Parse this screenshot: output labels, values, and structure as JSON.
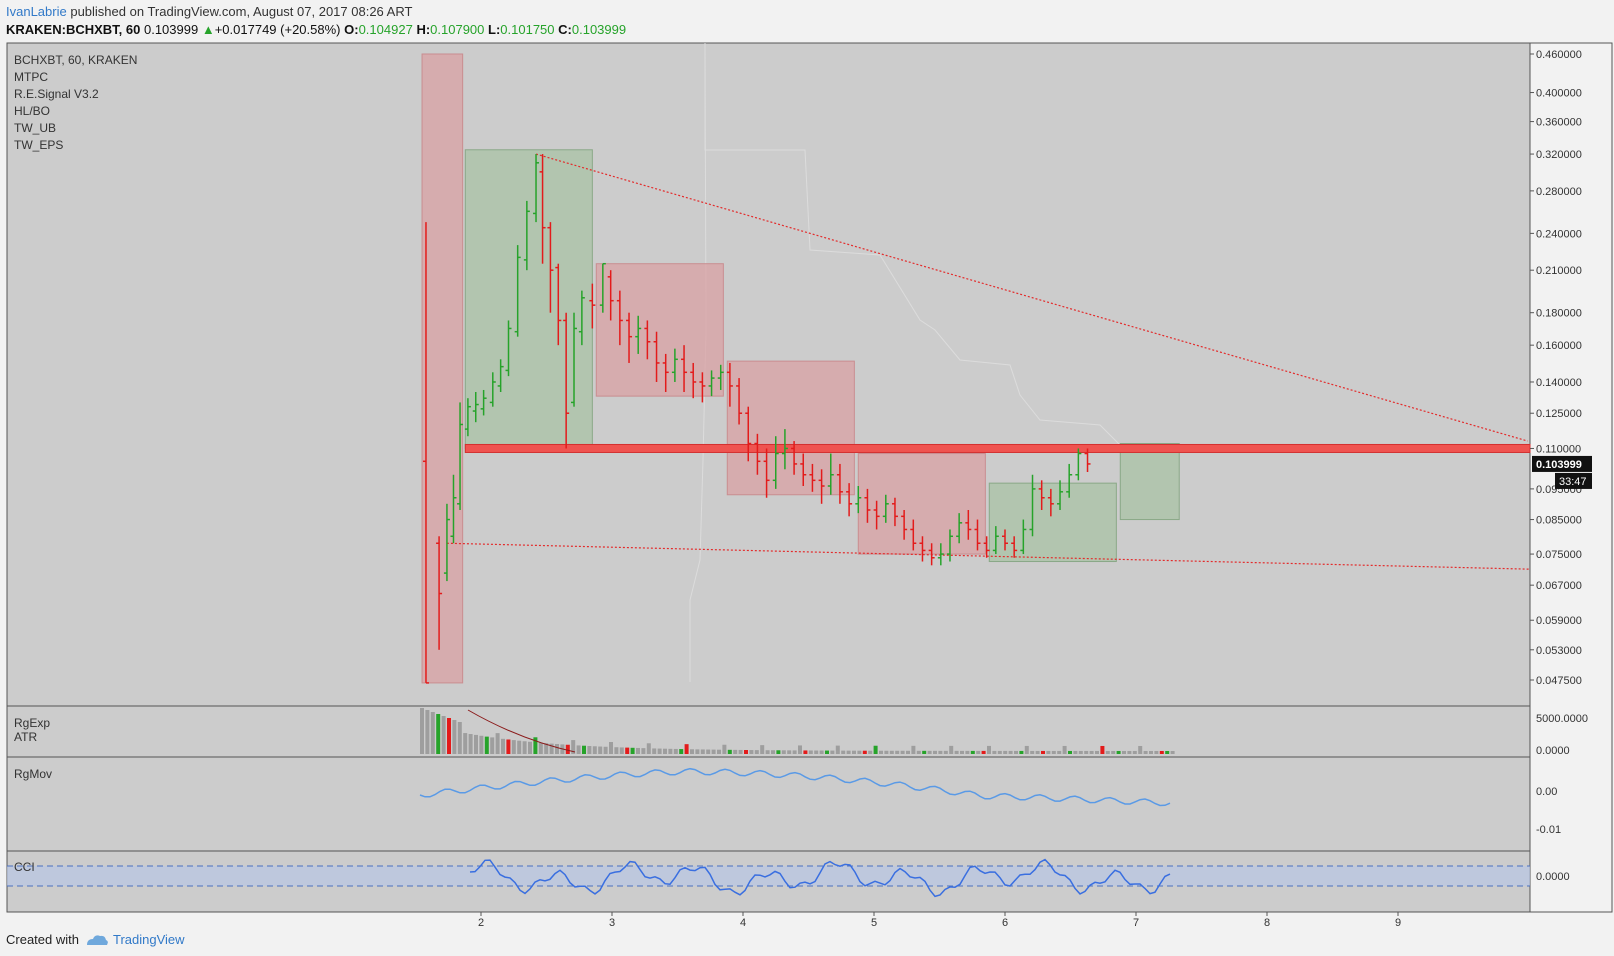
{
  "header": {
    "author": "IvanLabrie",
    "published_text": "published on TradingView.com, August 07, 2017 08:26 ART",
    "symbol": "KRAKEN:BCHXBT, 60",
    "last": "0.103999",
    "change": "+0.017749 (+20.58%)",
    "o_label": "O:",
    "o_val": "0.104927",
    "h_label": "H:",
    "h_val": "0.107900",
    "l_label": "L:",
    "l_val": "0.101750",
    "c_label": "C:",
    "c_val": "0.103999"
  },
  "indicators": [
    "BCHXBT, 60, KRAKEN",
    "MTPC",
    "R.E.Signal V3.2",
    "HL/BO",
    "TW_UB",
    "TW_EPS"
  ],
  "panes": {
    "volume": [
      "RgExp",
      "ATR"
    ],
    "rgmov": "RgMov",
    "cci": "CCI"
  },
  "price_badge": "0.103999",
  "countdown_badge": "33:47",
  "footer": {
    "created": "Created with",
    "brand": "TradingView"
  },
  "colors": {
    "up": "#26a32a",
    "down": "#e31b1b",
    "bg": "#cccccc",
    "green_box": "#a9c3a6",
    "red_box": "#d9a2a4",
    "line_blue": "#5a9ae6",
    "cci_line": "#3a6fe0"
  },
  "chart_data": {
    "type": "candlestick",
    "x_ticks": [
      "2",
      "3",
      "4",
      "5",
      "6",
      "7",
      "8",
      "9"
    ],
    "y_ticks": [
      "0.460000",
      "0.400000",
      "0.360000",
      "0.320000",
      "0.280000",
      "0.240000",
      "0.210000",
      "0.180000",
      "0.160000",
      "0.140000",
      "0.125000",
      "0.110000",
      "0.095000",
      "0.085000",
      "0.075000",
      "0.067000",
      "0.059000",
      "0.053000",
      "0.047500"
    ],
    "y_scale": "log",
    "candles": [
      [
        1.58,
        0.105,
        0.047,
        0.047,
        0.25
      ],
      [
        1.68,
        0.078,
        0.065,
        0.053,
        0.08
      ],
      [
        1.74,
        0.07,
        0.085,
        0.068,
        0.09
      ],
      [
        1.79,
        0.08,
        0.092,
        0.078,
        0.1
      ],
      [
        1.84,
        0.09,
        0.12,
        0.088,
        0.13
      ],
      [
        1.9,
        0.118,
        0.128,
        0.115,
        0.132
      ],
      [
        1.96,
        0.126,
        0.129,
        0.121,
        0.135
      ],
      [
        2.02,
        0.127,
        0.132,
        0.124,
        0.136
      ],
      [
        2.09,
        0.13,
        0.14,
        0.128,
        0.145
      ],
      [
        2.15,
        0.138,
        0.148,
        0.135,
        0.152
      ],
      [
        2.21,
        0.146,
        0.17,
        0.143,
        0.175
      ],
      [
        2.28,
        0.168,
        0.22,
        0.165,
        0.23
      ],
      [
        2.35,
        0.218,
        0.26,
        0.21,
        0.27
      ],
      [
        2.42,
        0.258,
        0.31,
        0.25,
        0.32
      ],
      [
        2.47,
        0.3,
        0.245,
        0.215,
        0.32
      ],
      [
        2.53,
        0.245,
        0.21,
        0.18,
        0.25
      ],
      [
        2.59,
        0.212,
        0.175,
        0.16,
        0.215
      ],
      [
        2.65,
        0.175,
        0.125,
        0.11,
        0.18
      ],
      [
        2.71,
        0.13,
        0.17,
        0.128,
        0.18
      ],
      [
        2.77,
        0.168,
        0.19,
        0.16,
        0.195
      ],
      [
        2.85,
        0.188,
        0.185,
        0.17,
        0.2
      ],
      [
        2.93,
        0.185,
        0.215,
        0.18,
        0.215
      ],
      [
        2.99,
        0.205,
        0.188,
        0.175,
        0.21
      ],
      [
        3.06,
        0.188,
        0.175,
        0.16,
        0.195
      ],
      [
        3.13,
        0.175,
        0.165,
        0.15,
        0.18
      ],
      [
        3.2,
        0.165,
        0.17,
        0.155,
        0.178
      ],
      [
        3.27,
        0.17,
        0.162,
        0.152,
        0.175
      ],
      [
        3.34,
        0.162,
        0.15,
        0.14,
        0.168
      ],
      [
        3.41,
        0.15,
        0.145,
        0.135,
        0.155
      ],
      [
        3.48,
        0.145,
        0.152,
        0.14,
        0.158
      ],
      [
        3.55,
        0.152,
        0.145,
        0.135,
        0.16
      ],
      [
        3.62,
        0.145,
        0.14,
        0.132,
        0.15
      ],
      [
        3.69,
        0.14,
        0.138,
        0.13,
        0.145
      ],
      [
        3.76,
        0.138,
        0.142,
        0.133,
        0.146
      ],
      [
        3.83,
        0.142,
        0.145,
        0.136,
        0.149
      ],
      [
        3.9,
        0.145,
        0.138,
        0.128,
        0.15
      ],
      [
        3.97,
        0.138,
        0.125,
        0.12,
        0.142
      ],
      [
        4.04,
        0.125,
        0.112,
        0.105,
        0.128
      ],
      [
        4.11,
        0.112,
        0.105,
        0.1,
        0.116
      ],
      [
        4.18,
        0.105,
        0.098,
        0.092,
        0.11
      ],
      [
        4.25,
        0.098,
        0.108,
        0.095,
        0.115
      ],
      [
        4.32,
        0.108,
        0.11,
        0.102,
        0.118
      ],
      [
        4.39,
        0.11,
        0.104,
        0.1,
        0.113
      ],
      [
        4.46,
        0.104,
        0.1,
        0.096,
        0.108
      ],
      [
        4.53,
        0.1,
        0.098,
        0.094,
        0.104
      ],
      [
        4.6,
        0.098,
        0.096,
        0.09,
        0.102
      ],
      [
        4.67,
        0.096,
        0.1,
        0.093,
        0.108
      ],
      [
        4.74,
        0.1,
        0.094,
        0.09,
        0.104
      ],
      [
        4.81,
        0.094,
        0.09,
        0.086,
        0.097
      ],
      [
        4.88,
        0.09,
        0.092,
        0.087,
        0.096
      ],
      [
        4.95,
        0.092,
        0.088,
        0.084,
        0.095
      ],
      [
        5.02,
        0.088,
        0.086,
        0.082,
        0.091
      ],
      [
        5.09,
        0.086,
        0.09,
        0.084,
        0.093
      ],
      [
        5.16,
        0.09,
        0.086,
        0.083,
        0.092
      ],
      [
        5.23,
        0.086,
        0.082,
        0.079,
        0.088
      ],
      [
        5.3,
        0.082,
        0.078,
        0.076,
        0.085
      ],
      [
        5.37,
        0.078,
        0.076,
        0.073,
        0.08
      ],
      [
        5.44,
        0.076,
        0.074,
        0.072,
        0.078
      ],
      [
        5.51,
        0.074,
        0.075,
        0.072,
        0.078
      ],
      [
        5.58,
        0.075,
        0.08,
        0.073,
        0.082
      ],
      [
        5.65,
        0.08,
        0.084,
        0.078,
        0.087
      ],
      [
        5.72,
        0.084,
        0.082,
        0.079,
        0.088
      ],
      [
        5.79,
        0.082,
        0.078,
        0.076,
        0.085
      ],
      [
        5.86,
        0.078,
        0.076,
        0.074,
        0.08
      ],
      [
        5.93,
        0.076,
        0.08,
        0.075,
        0.083
      ],
      [
        6.0,
        0.08,
        0.078,
        0.076,
        0.082
      ],
      [
        6.07,
        0.078,
        0.076,
        0.074,
        0.08
      ],
      [
        6.14,
        0.076,
        0.082,
        0.075,
        0.085
      ],
      [
        6.21,
        0.082,
        0.095,
        0.08,
        0.1
      ],
      [
        6.28,
        0.095,
        0.092,
        0.088,
        0.098
      ],
      [
        6.35,
        0.092,
        0.09,
        0.086,
        0.095
      ],
      [
        6.42,
        0.09,
        0.094,
        0.088,
        0.098
      ],
      [
        6.49,
        0.094,
        0.1,
        0.092,
        0.104
      ],
      [
        6.56,
        0.1,
        0.108,
        0.098,
        0.11
      ],
      [
        6.63,
        0.108,
        0.104,
        0.101,
        0.11
      ]
    ],
    "sr_level": 0.11,
    "trendline_upper": [
      [
        2.42,
        0.32
      ],
      [
        9.99,
        0.113
      ]
    ],
    "trendline_lower": [
      [
        1.74,
        0.078
      ],
      [
        9.99,
        0.071
      ]
    ],
    "zones": [
      {
        "kind": "red",
        "x0": 1.55,
        "x1": 1.86,
        "y0": 0.047,
        "y1": 0.46
      },
      {
        "kind": "green",
        "x0": 1.88,
        "x1": 2.85,
        "y0": 0.11,
        "y1": 0.325
      },
      {
        "kind": "red",
        "x0": 2.88,
        "x1": 3.85,
        "y0": 0.133,
        "y1": 0.215
      },
      {
        "kind": "red",
        "x0": 3.88,
        "x1": 4.85,
        "y0": 0.093,
        "y1": 0.151
      },
      {
        "kind": "red",
        "x0": 4.88,
        "x1": 5.85,
        "y0": 0.075,
        "y1": 0.108
      },
      {
        "kind": "green",
        "x0": 5.88,
        "x1": 6.85,
        "y0": 0.073,
        "y1": 0.097
      },
      {
        "kind": "green",
        "x0": 6.88,
        "x1": 7.33,
        "y0": 0.085,
        "y1": 0.112
      }
    ],
    "volume_ticks": [
      "5000.0000",
      "0.0000"
    ],
    "rgmov_ticks": [
      "0.00",
      "-0.01"
    ],
    "cci_ticks": [
      "0.0000"
    ]
  }
}
